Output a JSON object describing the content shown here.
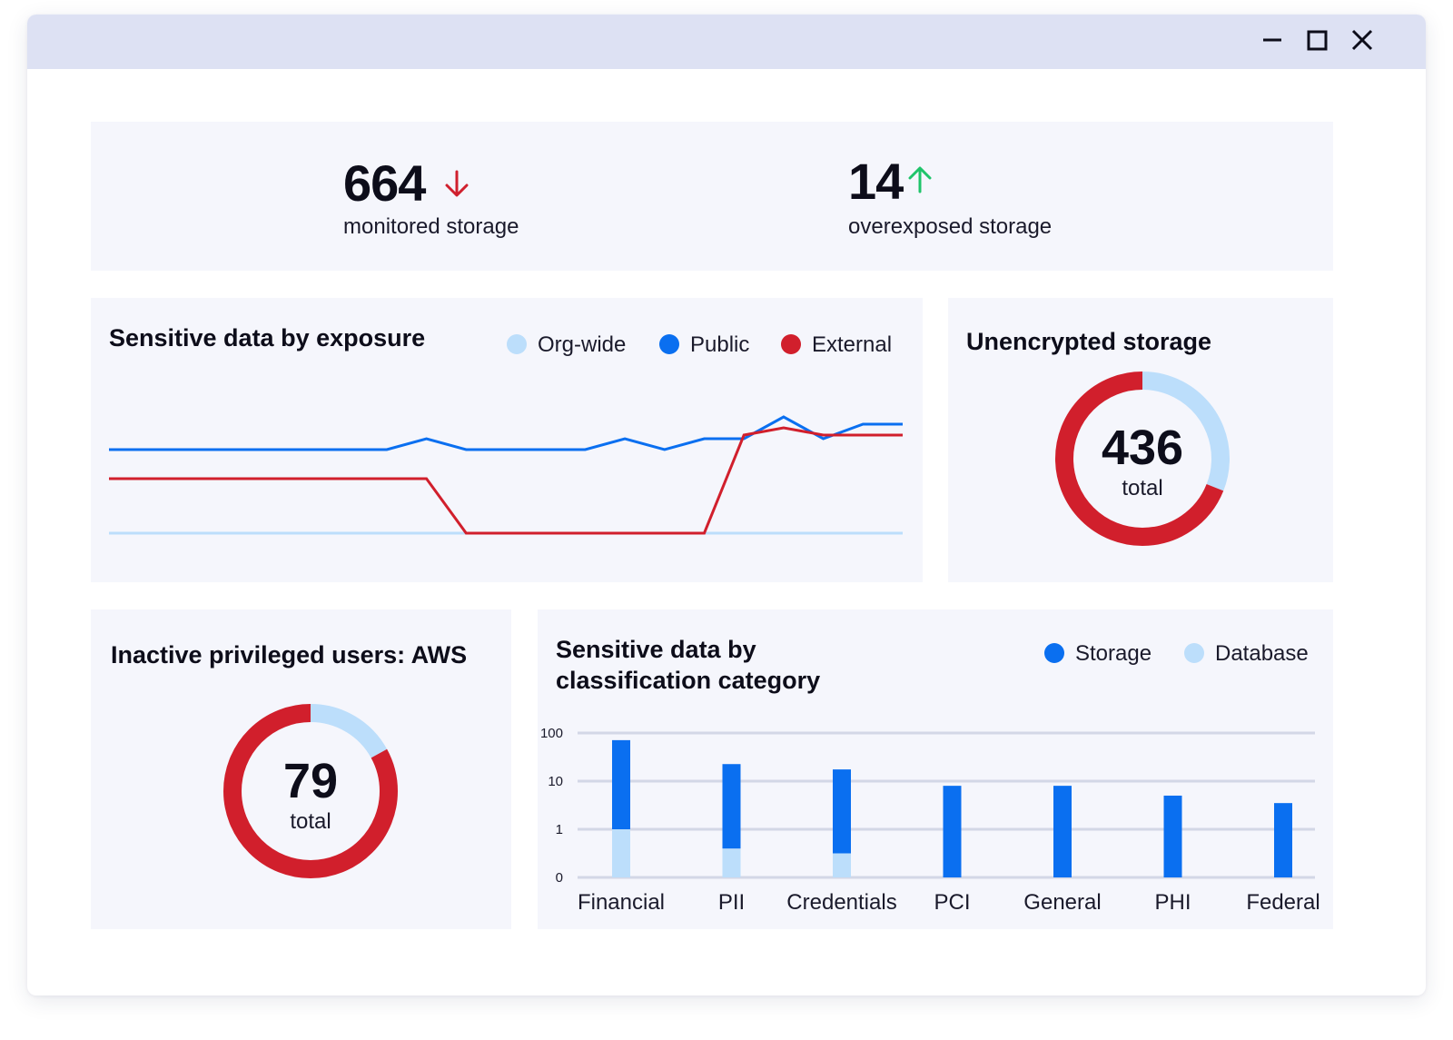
{
  "window": {
    "minimize_icon": "minimize-icon",
    "maximize_icon": "maximize-icon",
    "close_icon": "close-icon"
  },
  "stats": {
    "monitored": {
      "value": "664",
      "label": "monitored storage",
      "trend": "down",
      "trend_color": "#d0202e"
    },
    "overexposed": {
      "value": "14",
      "label": "overexposed storage",
      "trend": "up",
      "trend_color": "#1fc46a"
    }
  },
  "exposure_chart": {
    "title": "Sensitive data by exposure",
    "legend": [
      {
        "label": "Org-wide",
        "color": "#bcdefb"
      },
      {
        "label": "Public",
        "color": "#0a6ff0"
      },
      {
        "label": "External",
        "color": "#d11f2c"
      }
    ]
  },
  "unencrypted": {
    "title": "Unencrypted storage",
    "total": "436",
    "total_label": "total",
    "segments": [
      {
        "fraction": 0.31,
        "color": "#bcdefb"
      },
      {
        "fraction": 0.69,
        "color": "#d11f2c"
      }
    ]
  },
  "inactive_users": {
    "title": "Inactive privileged users: AWS",
    "total": "79",
    "total_label": "total",
    "segments": [
      {
        "fraction": 0.17,
        "color": "#bcdefb"
      },
      {
        "fraction": 0.83,
        "color": "#d11f2c"
      }
    ]
  },
  "classification_chart": {
    "title_line1": "Sensitive data by",
    "title_line2": "classification category",
    "legend": [
      {
        "label": "Storage",
        "color": "#0a6ff0"
      },
      {
        "label": "Database",
        "color": "#bcdefb"
      }
    ]
  },
  "chart_data": [
    {
      "type": "line",
      "title": "Sensitive data by exposure",
      "x": [
        0,
        1,
        2,
        3,
        4,
        5,
        6,
        7,
        8,
        9,
        10,
        11,
        12,
        13,
        14,
        15,
        16,
        17,
        18,
        19,
        20
      ],
      "series": [
        {
          "name": "Org-wide",
          "color": "#bcdefb",
          "values": [
            0,
            0,
            0,
            0,
            0,
            0,
            0,
            0,
            0,
            0,
            0,
            0,
            0,
            0,
            0,
            0,
            0,
            0,
            0,
            0,
            0
          ]
        },
        {
          "name": "Public",
          "color": "#0a6ff0",
          "values": [
            2.3,
            2.3,
            2.3,
            2.3,
            2.3,
            2.3,
            2.3,
            2.3,
            2.6,
            2.3,
            2.3,
            2.3,
            2.3,
            2.6,
            2.3,
            2.6,
            2.6,
            3.2,
            2.6,
            3.0,
            3.0
          ]
        },
        {
          "name": "External",
          "color": "#d11f2c",
          "values": [
            1.5,
            1.5,
            1.5,
            1.5,
            1.5,
            1.5,
            1.5,
            1.5,
            1.5,
            0,
            0,
            0,
            0,
            0,
            0,
            0,
            2.7,
            2.9,
            2.7,
            2.7,
            2.7
          ]
        }
      ],
      "grid": false
    },
    {
      "type": "bar",
      "stacked": true,
      "title": "Sensitive data by classification category",
      "categories": [
        "Financial",
        "PII",
        "Credentials",
        "PCI",
        "General",
        "PHI",
        "Federal"
      ],
      "y_ticks": [
        "0",
        "1",
        "10",
        "100"
      ],
      "y_scale": "log",
      "ylim": [
        0,
        100
      ],
      "series": [
        {
          "name": "Database",
          "color": "#bcdefb",
          "values": [
            1,
            0.6,
            0.5,
            0,
            0,
            0,
            0
          ]
        },
        {
          "name": "Storage",
          "color": "#0a6ff0",
          "values": [
            70,
            22,
            17,
            8,
            8,
            5,
            3.5
          ]
        }
      ],
      "grid": true
    }
  ]
}
